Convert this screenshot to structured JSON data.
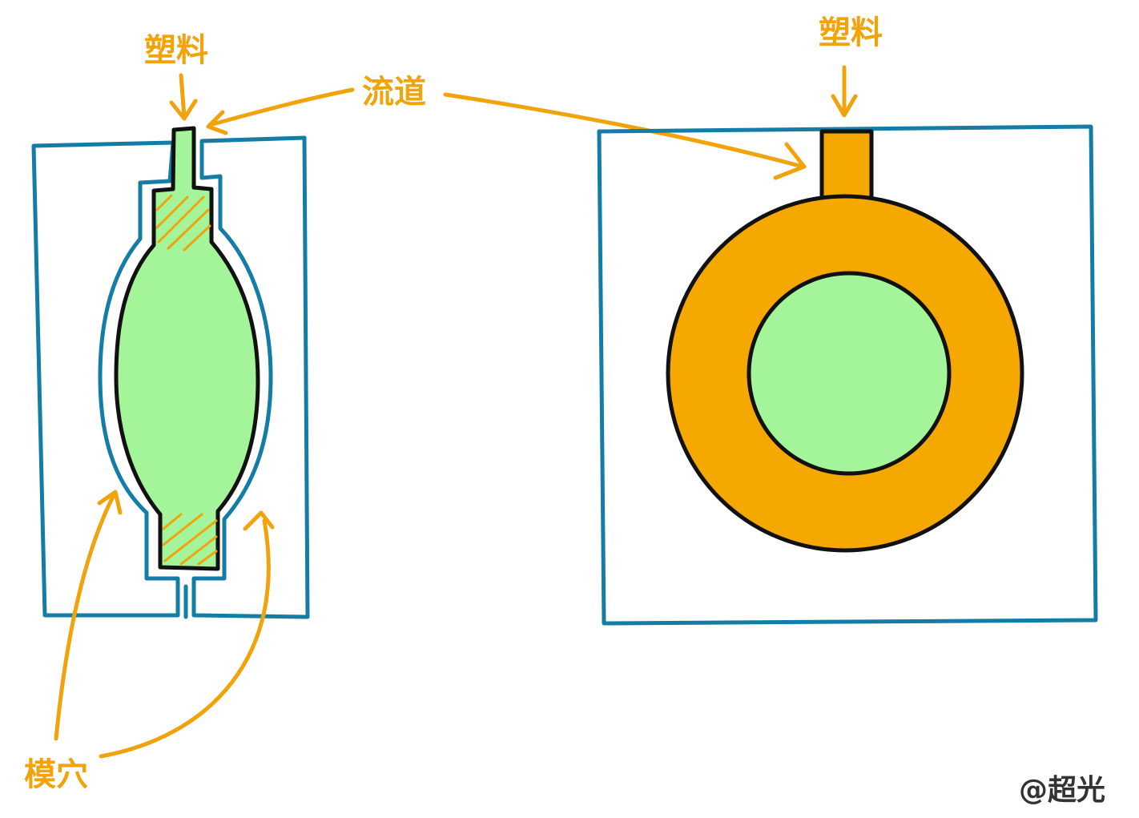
{
  "labels": {
    "plastic_left": "塑料",
    "plastic_right": "塑料",
    "runner": "流道",
    "cavity": "模穴",
    "credit": "@超光"
  },
  "colors": {
    "mold_outline": "#137da6",
    "label_orange": "#f0a30a",
    "plastic_fill": "#f5a800",
    "core_green": "#a4f49a",
    "outline_black": "#111111"
  },
  "icons": [
    "arrow-down-icon",
    "arrow-icon",
    "hatch-pattern"
  ]
}
